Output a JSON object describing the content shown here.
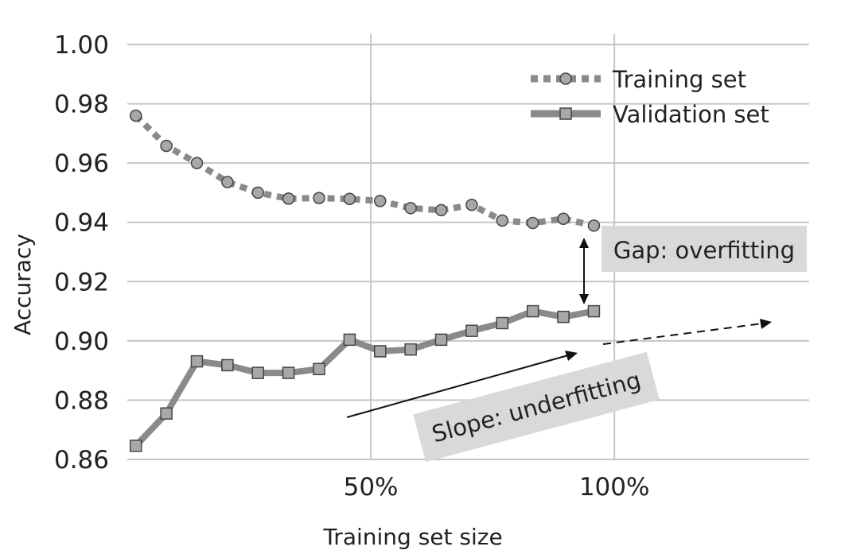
{
  "chart_data": {
    "type": "line",
    "title": "",
    "xlabel": "Training set size",
    "ylabel": "Accuracy",
    "ylim": [
      0.86,
      1.0
    ],
    "xlim": [
      0,
      140
    ],
    "y_ticks": [
      "0.86",
      "0.88",
      "0.90",
      "0.92",
      "0.94",
      "0.96",
      "0.98",
      "1.00"
    ],
    "y_tick_values": [
      0.86,
      0.88,
      0.9,
      0.92,
      0.94,
      0.96,
      0.98,
      1.0
    ],
    "x_ticks": [
      "50%",
      "100%"
    ],
    "x_tick_values": [
      50,
      100
    ],
    "legend_position": "top-right",
    "series": [
      {
        "name": "Training set",
        "style": "dotted",
        "marker": "circle",
        "color": "#8a8a8a",
        "x": [
          1.75,
          8.02,
          14.29,
          20.56,
          26.83,
          33.1,
          39.37,
          45.64,
          51.91,
          58.18,
          64.45,
          70.72,
          76.99,
          83.26,
          89.53,
          95.8
        ],
        "y": [
          0.976,
          0.9658,
          0.96,
          0.9536,
          0.95,
          0.948,
          0.9482,
          0.9479,
          0.9472,
          0.9448,
          0.9441,
          0.9459,
          0.9406,
          0.9398,
          0.9412,
          0.9389
        ]
      },
      {
        "name": "Validation set",
        "style": "solid",
        "marker": "square",
        "color": "#8a8a8a",
        "x": [
          1.75,
          8.02,
          14.29,
          20.56,
          26.83,
          33.1,
          39.37,
          45.64,
          51.91,
          58.18,
          64.45,
          70.72,
          76.99,
          83.26,
          89.53,
          95.8
        ],
        "y": [
          0.8646,
          0.8755,
          0.8931,
          0.8918,
          0.8892,
          0.8892,
          0.8905,
          0.9004,
          0.8965,
          0.8971,
          0.9004,
          0.9034,
          0.906,
          0.91,
          0.9081,
          0.91
        ]
      }
    ],
    "annotations": [
      {
        "text": "Gap: overfitting"
      },
      {
        "text": "Slope: underfitting"
      }
    ]
  },
  "colors": {
    "series": "#8a8a8a",
    "marker_fill": "#a8a8a8",
    "marker_stroke": "#444444",
    "grid": "#c6c6c6",
    "label_box": "#d9d9d9",
    "text": "#222222"
  }
}
